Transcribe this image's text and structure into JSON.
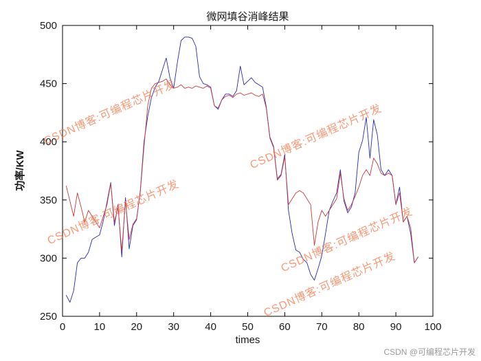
{
  "title": "微网填谷消峰结果",
  "watermark": {
    "text": "CSDN博客:可编程芯片开发"
  },
  "footer": {
    "credit": "CSDN @可编程芯片开发"
  },
  "chart_data": {
    "type": "line",
    "title": "微网填谷消峰结果",
    "xlabel": "times",
    "ylabel": "功率/KW",
    "xlim": [
      0,
      100
    ],
    "ylim": [
      250,
      500
    ],
    "xticks": [
      0,
      10,
      20,
      30,
      40,
      50,
      60,
      70,
      80,
      90,
      100
    ],
    "yticks": [
      250,
      300,
      350,
      400,
      450,
      500
    ],
    "grid": false,
    "legend": false,
    "x": [
      1,
      2,
      3,
      4,
      5,
      6,
      7,
      8,
      9,
      10,
      11,
      12,
      13,
      14,
      15,
      16,
      17,
      18,
      19,
      20,
      21,
      22,
      23,
      24,
      25,
      26,
      27,
      28,
      29,
      30,
      31,
      32,
      33,
      34,
      35,
      36,
      37,
      38,
      39,
      40,
      41,
      42,
      43,
      44,
      45,
      46,
      47,
      48,
      49,
      50,
      51,
      52,
      53,
      54,
      55,
      56,
      57,
      58,
      59,
      60,
      61,
      62,
      63,
      64,
      65,
      66,
      67,
      68,
      69,
      70,
      71,
      72,
      73,
      74,
      75,
      76,
      77,
      78,
      79,
      80,
      81,
      82,
      83,
      84,
      85,
      86,
      87,
      88,
      89,
      90,
      91,
      92,
      93,
      94,
      95,
      96
    ],
    "series": [
      {
        "name": "blue-line",
        "color": "#2929b8",
        "values": [
          268,
          262,
          272,
          296,
          300,
          300,
          305,
          316,
          318,
          320,
          332,
          348,
          365,
          328,
          346,
          301,
          352,
          308,
          328,
          333,
          358,
          400,
          422,
          438,
          447,
          452,
          462,
          472,
          455,
          446,
          468,
          487,
          490,
          490,
          489,
          482,
          456,
          450,
          449,
          447,
          431,
          428,
          436,
          441,
          441,
          439,
          444,
          465,
          449,
          452,
          455,
          451,
          449,
          447,
          430,
          404,
          396,
          368,
          372,
          389,
          341,
          321,
          307,
          305,
          299,
          296,
          286,
          281,
          291,
          302,
          321,
          341,
          349,
          356,
          376,
          349,
          339,
          344,
          356,
          391,
          401,
          421,
          386,
          419,
          406,
          376,
          371,
          376,
          371,
          346,
          361,
          331,
          336,
          321,
          296,
          301
        ]
      },
      {
        "name": "red-line",
        "color": "#cc3a3a",
        "values": [
          362,
          349,
          336,
          356,
          344,
          331,
          341,
          336,
          331,
          326,
          336,
          346,
          364,
          331,
          344,
          306,
          349,
          316,
          329,
          334,
          357,
          396,
          431,
          446,
          450,
          451,
          452,
          454,
          449,
          446,
          447,
          449,
          446,
          447,
          446,
          448,
          447,
          446,
          448,
          446,
          431,
          429,
          436,
          439,
          440,
          438,
          441,
          442,
          440,
          441,
          442,
          440,
          439,
          441,
          429,
          403,
          395,
          367,
          371,
          387,
          346,
          351,
          356,
          358,
          356,
          351,
          346,
          311,
          331,
          341,
          336,
          341,
          346,
          351,
          373,
          351,
          341,
          346,
          353,
          361,
          371,
          376,
          371,
          386,
          381,
          373,
          371,
          373,
          371,
          346,
          356,
          331,
          336,
          326,
          296,
          301
        ]
      }
    ]
  }
}
